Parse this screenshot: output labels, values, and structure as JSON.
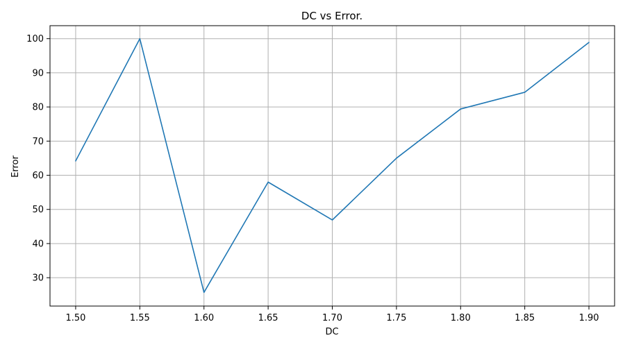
{
  "chart_data": {
    "type": "line",
    "title": "DC vs Error.",
    "xlabel": "DC",
    "ylabel": "Error",
    "x": [
      1.5,
      1.55,
      1.6,
      1.65,
      1.7,
      1.75,
      1.8,
      1.85,
      1.9
    ],
    "series": [
      {
        "values": [
          64.2,
          100.0,
          25.7,
          58.0,
          46.9,
          65.0,
          79.4,
          84.3,
          98.9
        ],
        "color": "#1f77b4"
      }
    ],
    "xlim": [
      1.48,
      1.92
    ],
    "ylim": [
      21.7,
      103.8
    ],
    "xticks": [
      "1.50",
      "1.55",
      "1.60",
      "1.65",
      "1.70",
      "1.75",
      "1.80",
      "1.85",
      "1.90"
    ],
    "yticks": [
      "30",
      "40",
      "50",
      "60",
      "70",
      "80",
      "90",
      "100"
    ],
    "grid": true,
    "grid_color": "#b0b0b0"
  }
}
